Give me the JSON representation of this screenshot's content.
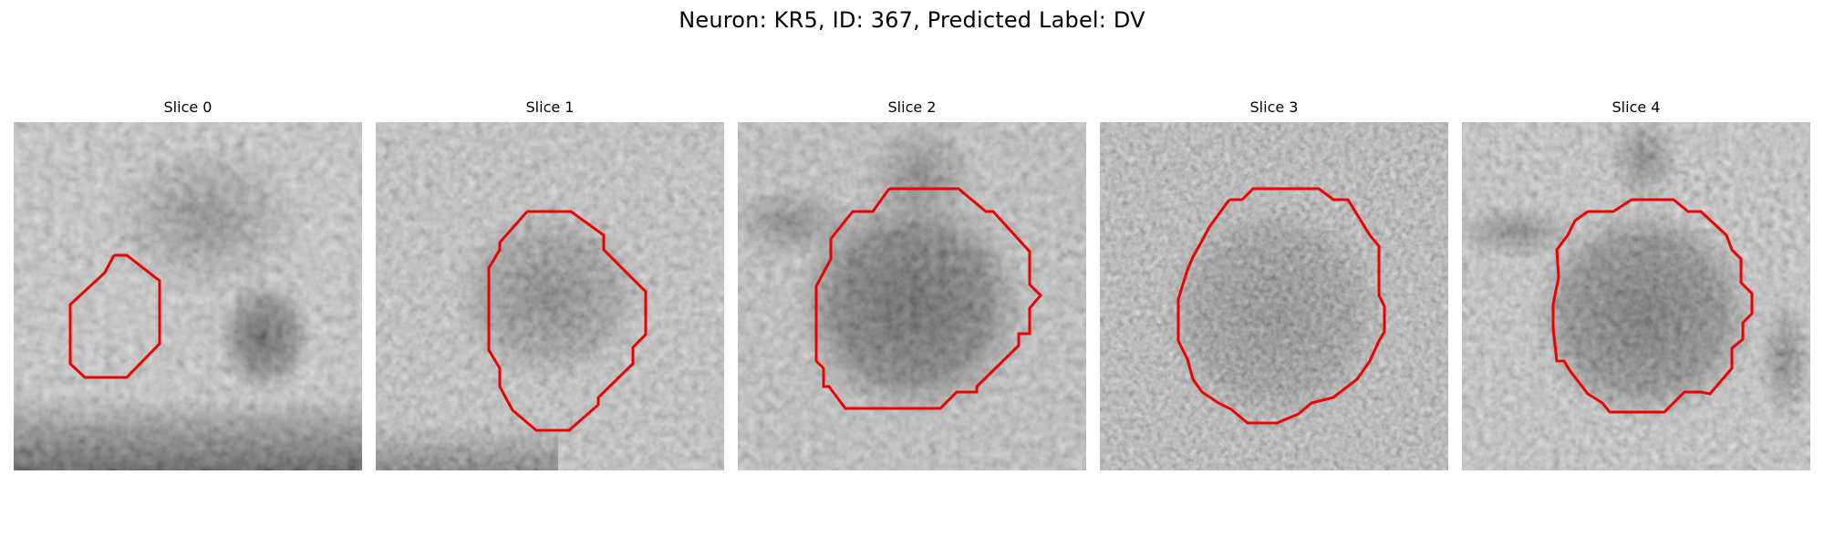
{
  "figure": {
    "title": "Neuron: KR5, ID: 367, Predicted Label: DV"
  },
  "slices": [
    {
      "title": "Slice 0"
    },
    {
      "title": "Slice 1"
    },
    {
      "title": "Slice 2"
    },
    {
      "title": "Slice 3"
    },
    {
      "title": "Slice 4"
    }
  ],
  "style": {
    "contour_color": "#ee0000",
    "image_colormap": "gray"
  }
}
